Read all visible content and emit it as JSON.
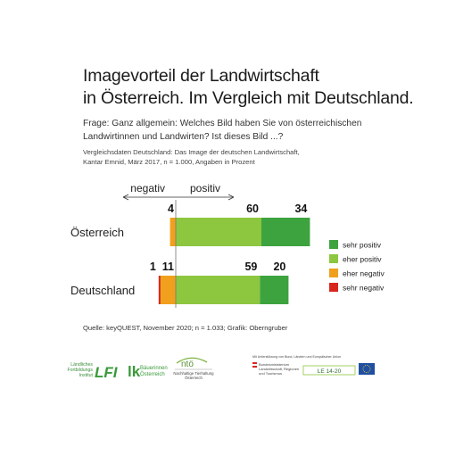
{
  "header": {
    "title_line1": "Imagevorteil der Landwirtschaft",
    "title_line2": "in Österreich. Im Vergleich mit Deutschland.",
    "question_line1": "Frage: Ganz allgemein: Welches Bild haben Sie von österreichischen",
    "question_line2": "Landwirtinnen und Landwirten? Ist dieses Bild ...?",
    "note_line1": "Vergleichsdaten Deutschland: Das Image der deutschen Landwirtschaft,",
    "note_line2": "Kantar Emnid, März 2017, n = 1.000, Angaben in Prozent"
  },
  "chart_data": {
    "type": "bar",
    "orientation": "horizontal-diverging",
    "direction_labels": {
      "negative": "negativ",
      "positive": "positiv"
    },
    "categories": [
      "Österreich",
      "Deutschland"
    ],
    "series": [
      {
        "name": "sehr positiv",
        "color": "#3da33f",
        "values": [
          34,
          20
        ]
      },
      {
        "name": "eher positiv",
        "color": "#8dc63f",
        "values": [
          60,
          59
        ]
      },
      {
        "name": "eher negativ",
        "color": "#f0a01d",
        "values": [
          4,
          11
        ]
      },
      {
        "name": "sehr negativ",
        "color": "#d7261e",
        "values": [
          0,
          1
        ]
      }
    ],
    "value_labels": {
      "Österreich": {
        "sehr negativ": "",
        "eher negativ": "4",
        "eher positiv": "60",
        "sehr positiv": "34"
      },
      "Deutschland": {
        "sehr negativ": "1",
        "eher negativ": "11",
        "eher positiv": "59",
        "sehr positiv": "20"
      }
    },
    "legend_position": "right",
    "unit": "Prozent"
  },
  "footer": {
    "source": "Quelle: keyQUEST, November 2020; n = 1.033; Grafik: Oberngruber",
    "logos": {
      "lfi_lines": [
        "Ländliches",
        "Fortbildungs",
        "Institut"
      ],
      "lfi_mark": "LFI",
      "lk_mark": "lk",
      "lk_lines": [
        "Bäuerinnen",
        "Österreich"
      ],
      "nto_mark": "ntö",
      "nto_lines": [
        "Nachhaltige Tierhaltung",
        "Österreich"
      ],
      "support_text": "Mit Unterstützung von Bund, Ländern und Europäischer Union",
      "ministry_lines": [
        "Bundesministerium",
        "Landwirtschaft, Regionen",
        "und Tourismus"
      ],
      "le_mark": "LE 14-20"
    }
  },
  "colors": {
    "sehr_positiv": "#3da33f",
    "eher_positiv": "#8dc63f",
    "eher_negativ": "#f0a01d",
    "sehr_negativ": "#d7261e"
  }
}
